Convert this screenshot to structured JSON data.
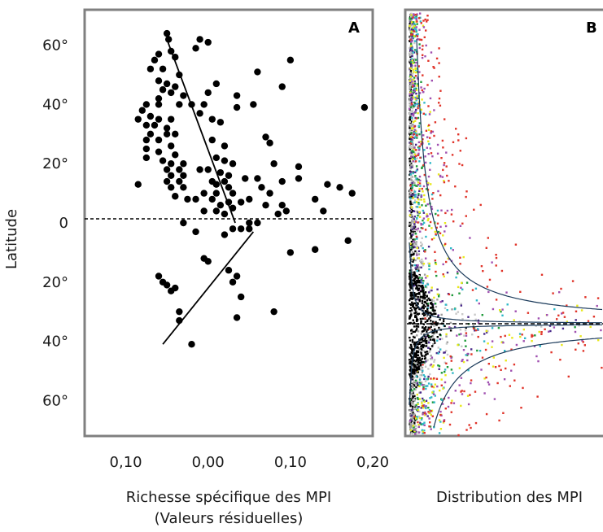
{
  "chart_data": [
    {
      "type": "scatter",
      "panel_label": "A",
      "xlabel": "Richesse spécifique des MPI",
      "xlabel_line2": "(Valeurs résiduelles)",
      "ylabel": "Latitude",
      "xlim": [
        -0.15,
        0.2
      ],
      "ylim": [
        -72,
        72
      ],
      "x_tick_values": [
        -0.1,
        0,
        0.1,
        0.2
      ],
      "x_tick_labels": [
        "0,10",
        "0,00",
        "0,10",
        "0,20"
      ],
      "y_tick_values": [
        60,
        40,
        20,
        0,
        -20,
        -40,
        -60
      ],
      "y_tick_labels": [
        "60°",
        "40°",
        "20°",
        "0",
        "20°",
        "40°",
        "60°"
      ],
      "reference_line_y": 0,
      "fit_lines": [
        {
          "x": [
            -0.05,
            0.033
          ],
          "y": [
            62,
            0
          ]
        },
        {
          "x": [
            -0.055,
            0.055
          ],
          "y": [
            -41,
            -3
          ]
        }
      ],
      "points": [
        [
          -0.05,
          64
        ],
        [
          -0.048,
          62
        ],
        [
          -0.045,
          58
        ],
        [
          -0.04,
          56
        ],
        [
          -0.065,
          55
        ],
        [
          -0.06,
          57
        ],
        [
          -0.07,
          52
        ],
        [
          -0.055,
          52
        ],
        [
          -0.035,
          50
        ],
        [
          -0.06,
          48
        ],
        [
          -0.05,
          47
        ],
        [
          -0.04,
          46
        ],
        [
          -0.055,
          45
        ],
        [
          -0.045,
          44
        ],
        [
          -0.03,
          43
        ],
        [
          -0.06,
          42
        ],
        [
          -0.075,
          40
        ],
        [
          -0.06,
          40
        ],
        [
          -0.035,
          40
        ],
        [
          -0.02,
          40
        ],
        [
          -0.08,
          38
        ],
        [
          -0.07,
          36
        ],
        [
          -0.06,
          35
        ],
        [
          -0.045,
          35
        ],
        [
          -0.085,
          35
        ],
        [
          -0.075,
          33
        ],
        [
          -0.065,
          33
        ],
        [
          -0.05,
          32
        ],
        [
          -0.07,
          30
        ],
        [
          -0.05,
          30
        ],
        [
          -0.04,
          30
        ],
        [
          -0.075,
          28
        ],
        [
          -0.06,
          28
        ],
        [
          -0.045,
          26
        ],
        [
          -0.075,
          25
        ],
        [
          -0.06,
          24
        ],
        [
          -0.04,
          23
        ],
        [
          -0.075,
          22
        ],
        [
          -0.055,
          21
        ],
        [
          -0.045,
          20
        ],
        [
          -0.03,
          20
        ],
        [
          -0.05,
          18
        ],
        [
          -0.035,
          18
        ],
        [
          -0.045,
          16
        ],
        [
          -0.03,
          16
        ],
        [
          -0.05,
          14
        ],
        [
          -0.035,
          14
        ],
        [
          -0.085,
          13
        ],
        [
          -0.045,
          12
        ],
        [
          -0.03,
          12
        ],
        [
          -0.04,
          9
        ],
        [
          -0.025,
          8
        ],
        [
          -0.01,
          62
        ],
        [
          0,
          61
        ],
        [
          -0.015,
          59
        ],
        [
          0,
          44
        ],
        [
          0.01,
          47
        ],
        [
          -0.005,
          40
        ],
        [
          -0.01,
          37
        ],
        [
          0.005,
          35
        ],
        [
          0.015,
          34
        ],
        [
          0.005,
          28
        ],
        [
          0.02,
          26
        ],
        [
          0.01,
          22
        ],
        [
          0.02,
          21
        ],
        [
          0.03,
          20
        ],
        [
          0.0,
          18
        ],
        [
          -0.01,
          18
        ],
        [
          0.015,
          17
        ],
        [
          0.025,
          16
        ],
        [
          0.005,
          14
        ],
        [
          0.02,
          14
        ],
        [
          0.01,
          13
        ],
        [
          0.025,
          12
        ],
        [
          -0.005,
          10
        ],
        [
          0.01,
          10
        ],
        [
          0.03,
          10
        ],
        [
          0.005,
          8
        ],
        [
          -0.015,
          8
        ],
        [
          0.025,
          7
        ],
        [
          0.015,
          6
        ],
        [
          0.03,
          5
        ],
        [
          -0.005,
          4
        ],
        [
          0.01,
          4
        ],
        [
          0.02,
          3
        ],
        [
          0.03,
          -2
        ],
        [
          0.04,
          -2
        ],
        [
          0.05,
          -2
        ],
        [
          0.05,
          0
        ],
        [
          0.06,
          0
        ],
        [
          0.035,
          43
        ],
        [
          0.055,
          40
        ],
        [
          0.035,
          39
        ],
        [
          0.06,
          51
        ],
        [
          0.07,
          29
        ],
        [
          0.08,
          20
        ],
        [
          0.075,
          27
        ],
        [
          0.09,
          14
        ],
        [
          0.06,
          15
        ],
        [
          0.045,
          15
        ],
        [
          0.065,
          12
        ],
        [
          0.075,
          10
        ],
        [
          0.05,
          8
        ],
        [
          0.04,
          7
        ],
        [
          0.07,
          6
        ],
        [
          0.09,
          6
        ],
        [
          0.095,
          4
        ],
        [
          0.085,
          3
        ],
        [
          0.1,
          55
        ],
        [
          0.09,
          46
        ],
        [
          0.11,
          19
        ],
        [
          0.11,
          15
        ],
        [
          0.13,
          8
        ],
        [
          0.14,
          4
        ],
        [
          0.145,
          13
        ],
        [
          0.16,
          12
        ],
        [
          0.175,
          10
        ],
        [
          0.19,
          39
        ],
        [
          0.17,
          -6
        ],
        [
          0.13,
          -9
        ],
        [
          -0.015,
          -3
        ],
        [
          0.02,
          -4
        ],
        [
          -0.03,
          0
        ],
        [
          0,
          -13
        ],
        [
          -0.005,
          -12
        ],
        [
          0.025,
          -16
        ],
        [
          0.035,
          -18
        ],
        [
          0.04,
          -25
        ],
        [
          0.035,
          -32
        ],
        [
          0.08,
          -30
        ],
        [
          0.1,
          -10
        ],
        [
          -0.06,
          -18
        ],
        [
          -0.055,
          -20
        ],
        [
          -0.05,
          -21
        ],
        [
          -0.045,
          -23
        ],
        [
          -0.04,
          -22
        ],
        [
          -0.035,
          -30
        ],
        [
          -0.035,
          -33
        ],
        [
          -0.02,
          -41
        ],
        [
          0.03,
          -20
        ]
      ]
    },
    {
      "type": "scatter",
      "panel_label": "B",
      "xlabel": "Distribution des MPI",
      "series_colors": [
        "#000000",
        "#9e9e9e",
        "#c8c8c8",
        "#4a2a8a",
        "#1f9a3a",
        "#2fb8c8",
        "#e8e81a",
        "#a050b0",
        "#e0342a"
      ]
    }
  ]
}
